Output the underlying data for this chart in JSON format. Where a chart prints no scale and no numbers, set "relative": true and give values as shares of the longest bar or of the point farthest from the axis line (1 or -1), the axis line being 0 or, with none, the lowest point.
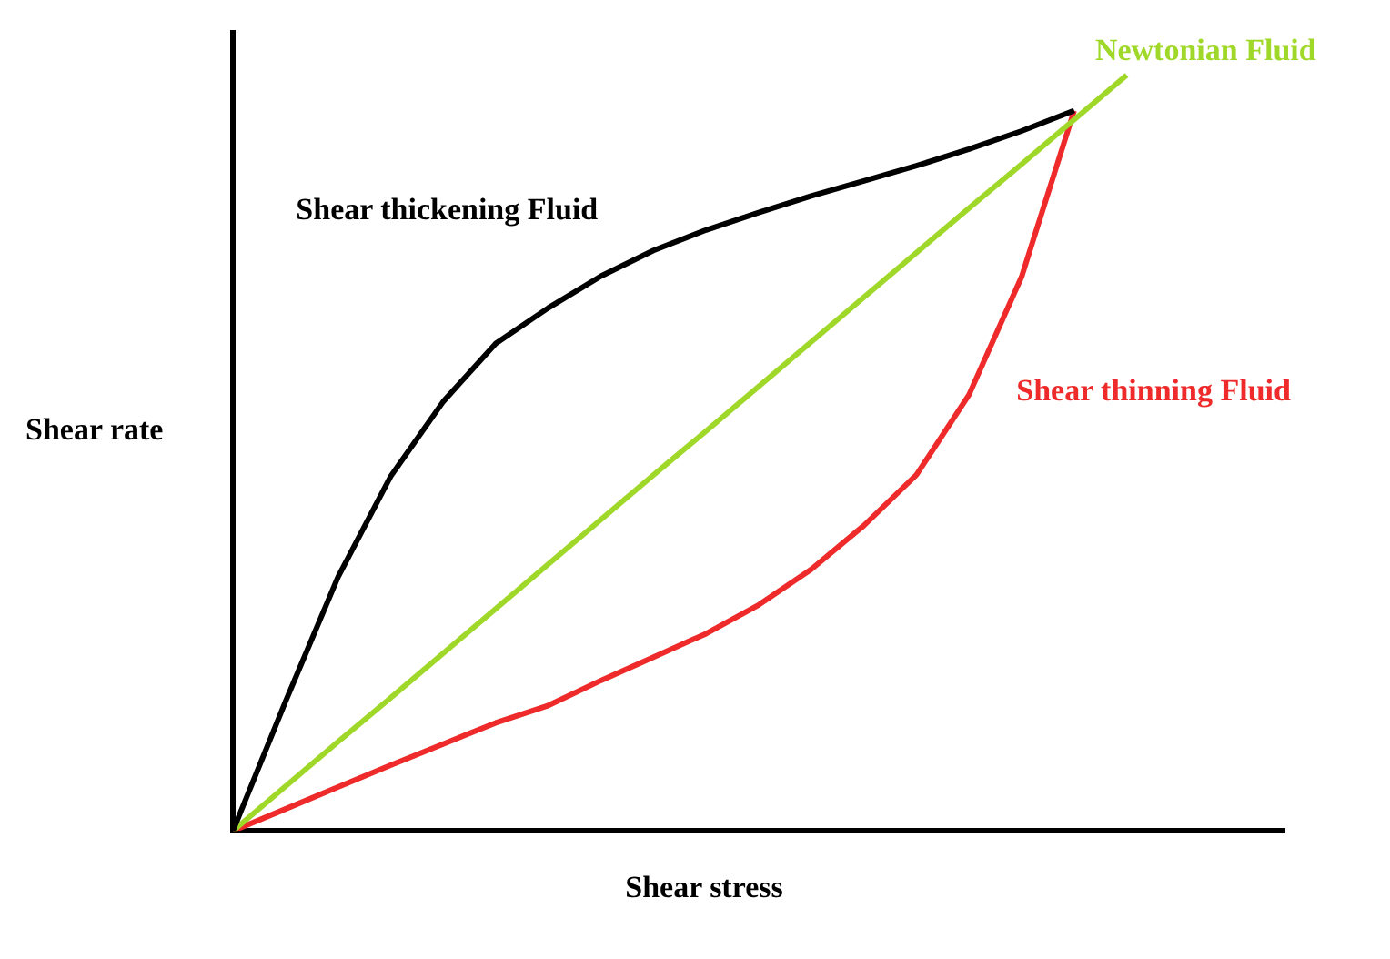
{
  "chart_data": {
    "type": "line",
    "relative": true,
    "xlabel": "Shear stress",
    "ylabel": "Shear rate",
    "legend": false,
    "marker": "none",
    "line_style": "solid",
    "categories": [
      null,
      null,
      null,
      null,
      null,
      null,
      null,
      null,
      null,
      null,
      null,
      null,
      null,
      null,
      null,
      null,
      null,
      null,
      null,
      null,
      null
    ],
    "series": [
      {
        "name": "Shear thickening Fluid",
        "color": "#000000",
        "values": [
          0,
          0.171,
          0.336,
          0.469,
          0.568,
          0.645,
          0.692,
          0.734,
          0.768,
          0.795,
          0.818,
          0.84,
          0.86,
          0.88,
          0.902,
          0.926,
          0.953,
          null,
          null,
          null,
          null
        ]
      },
      {
        "name": "Newtonian Fluid",
        "color": "#a0d82a",
        "values": [
          0,
          0.059,
          0.118,
          0.176,
          0.235,
          0.294,
          0.353,
          0.412,
          0.471,
          0.529,
          0.588,
          0.647,
          0.706,
          0.765,
          0.824,
          0.882,
          0.941,
          1,
          null,
          null,
          null
        ]
      },
      {
        "name": "Shear thinning Fluid",
        "color": "#ee2a2a",
        "values": [
          0,
          0.029,
          0.058,
          0.087,
          0.115,
          0.143,
          0.166,
          0.199,
          0.23,
          0.261,
          0.299,
          0.346,
          0.404,
          0.471,
          0.577,
          0.733,
          0.953,
          null,
          null,
          null,
          null
        ]
      }
    ]
  }
}
